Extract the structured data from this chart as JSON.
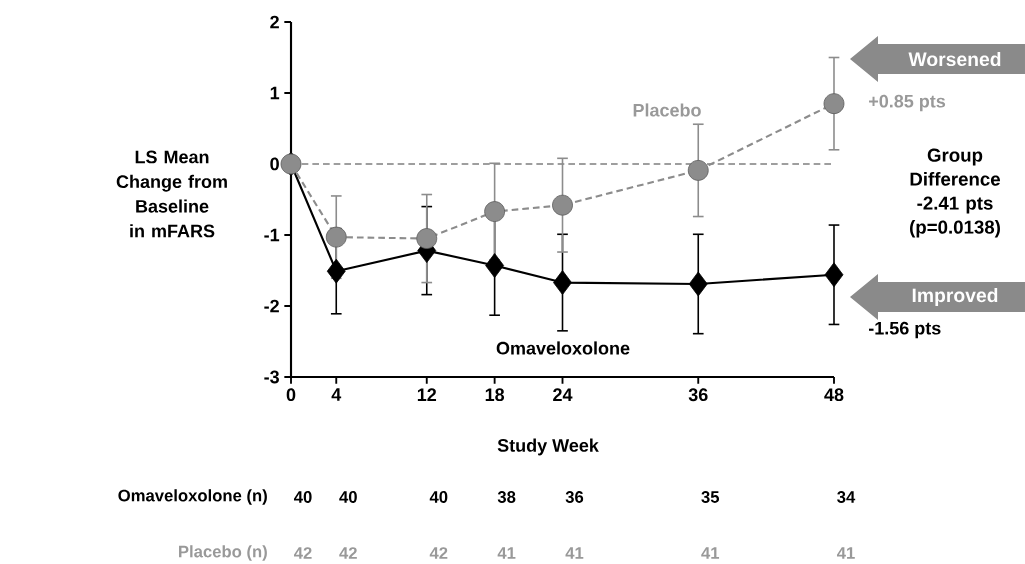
{
  "chart_data": {
    "type": "line",
    "xlabel": "Study Week",
    "ylabel": "LS Mean Change from Baseline in mFARS",
    "x": [
      0,
      4,
      12,
      18,
      24,
      36,
      48
    ],
    "xlim": [
      0,
      48
    ],
    "xticks": [
      0,
      4,
      12,
      18,
      24,
      36,
      48
    ],
    "ylim": [
      -3,
      2
    ],
    "yticks": [
      -3,
      -2,
      -1,
      0,
      1,
      2
    ],
    "grid": false,
    "series": [
      {
        "name": "Omaveloxolone",
        "color": "#000000",
        "marker": "diamond",
        "line_style": "solid",
        "values": [
          0,
          -1.51,
          -1.22,
          -1.43,
          -1.67,
          -1.69,
          -1.56
        ],
        "errors": [
          null,
          0.6,
          0.62,
          0.7,
          0.68,
          0.7,
          0.7
        ]
      },
      {
        "name": "Placebo",
        "color": "#8c8c8c",
        "marker": "circle",
        "line_style": "dashed",
        "values": [
          0,
          -1.03,
          -1.05,
          -0.67,
          -0.58,
          -0.09,
          0.85
        ],
        "errors": [
          null,
          0.58,
          0.62,
          0.68,
          0.66,
          0.65,
          0.65
        ]
      }
    ],
    "ref_lines": [
      {
        "axis": "y",
        "value": 0,
        "color": "#7f7f7f",
        "line_style": "dashed"
      }
    ],
    "annotations": [
      "+0.85 pts",
      "-1.56 pts",
      "Group Difference -2.41 pts (p=0.0138)",
      "Worsened",
      "Improved",
      "Omaveloxolone (n)",
      "40",
      "40",
      "40",
      "38",
      "36",
      "35",
      "34",
      "Placebo (n)",
      "42",
      "42",
      "42",
      "41",
      "41",
      "41",
      "41"
    ]
  }
}
